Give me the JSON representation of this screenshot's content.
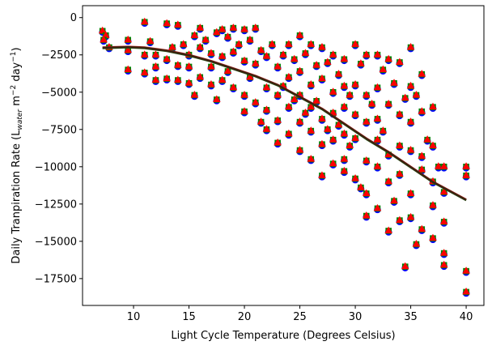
{
  "chart_data": {
    "type": "scatter",
    "xlabel": "Light Cycle Temperature (Degrees Celsius)",
    "ylabel": {
      "prefix": "Daily Tranpiration Rate (L",
      "sub": "water",
      "mid1": " m",
      "sup1": "−2",
      "mid2": " day",
      "sup2": "−1",
      "suffix": ")"
    },
    "xlim": [
      5.4,
      41.6
    ],
    "ylim": [
      -19300,
      800
    ],
    "xticks": [
      10,
      15,
      20,
      25,
      30,
      35,
      40
    ],
    "yticks": [
      0,
      -2500,
      -5000,
      -7500,
      -10000,
      -12500,
      -15000,
      -17500
    ],
    "ytick_labels": [
      "0",
      "−2500",
      "−5000",
      "−7500",
      "−10000",
      "−12500",
      "−15000",
      "−17500"
    ],
    "grid": false,
    "series": [
      {
        "marker": "circle",
        "color": "#0000ff"
      },
      {
        "marker": "square",
        "color": "#008000"
      },
      {
        "marker": "triangle",
        "color": "#ff0000"
      }
    ],
    "points": [
      [
        7.2,
        -900
      ],
      [
        7.5,
        -1200
      ],
      [
        7.8,
        -2000
      ],
      [
        7.3,
        -1500
      ],
      [
        9.5,
        -1500
      ],
      [
        9.5,
        -2200
      ],
      [
        9.5,
        -3500
      ],
      [
        11,
        -300
      ],
      [
        11,
        -2500
      ],
      [
        11,
        -3700
      ],
      [
        11.5,
        -1600
      ],
      [
        12,
        -2500
      ],
      [
        12,
        -4200
      ],
      [
        12,
        -3300
      ],
      [
        13,
        -400
      ],
      [
        13,
        -2800
      ],
      [
        13,
        -4100
      ],
      [
        13.5,
        -2000
      ],
      [
        14,
        -500
      ],
      [
        14,
        -3200
      ],
      [
        14,
        -4200
      ],
      [
        14.5,
        -1800
      ],
      [
        15,
        -2500
      ],
      [
        15,
        -3300
      ],
      [
        15,
        -4400
      ],
      [
        15.5,
        -1200
      ],
      [
        15.5,
        -5200
      ],
      [
        16,
        -700
      ],
      [
        16,
        -2000
      ],
      [
        16,
        -4000
      ],
      [
        16.5,
        -1500
      ],
      [
        17,
        -2400
      ],
      [
        17,
        -3300
      ],
      [
        17,
        -4500
      ],
      [
        17.5,
        -1000
      ],
      [
        17.5,
        -5500
      ],
      [
        18,
        -800
      ],
      [
        18,
        -2600
      ],
      [
        18,
        -4200
      ],
      [
        18.5,
        -1300
      ],
      [
        18.5,
        -3600
      ],
      [
        19,
        -700
      ],
      [
        19,
        -2300
      ],
      [
        19,
        -4700
      ],
      [
        19.5,
        -1800
      ],
      [
        20,
        -800
      ],
      [
        20,
        -2900
      ],
      [
        20,
        -5200
      ],
      [
        20,
        -6300
      ],
      [
        20.5,
        -1500
      ],
      [
        20.5,
        -4000
      ],
      [
        21,
        -700
      ],
      [
        21,
        -3100
      ],
      [
        21,
        -5700
      ],
      [
        21.5,
        -2200
      ],
      [
        21.5,
        -7000
      ],
      [
        22,
        -2600
      ],
      [
        22,
        -4700
      ],
      [
        22,
        -6200
      ],
      [
        22,
        -7500
      ],
      [
        22.5,
        -1800
      ],
      [
        23,
        -3300
      ],
      [
        23,
        -5200
      ],
      [
        23,
        -6900
      ],
      [
        23,
        -8400
      ],
      [
        23.5,
        -2500
      ],
      [
        23.5,
        -4600
      ],
      [
        24,
        -1800
      ],
      [
        24,
        -4000
      ],
      [
        24,
        -6000
      ],
      [
        24,
        -7800
      ],
      [
        24.5,
        -2800
      ],
      [
        24.5,
        -5500
      ],
      [
        25,
        -1200
      ],
      [
        25,
        -3600
      ],
      [
        25,
        -5200
      ],
      [
        25,
        -7000
      ],
      [
        25,
        -8900
      ],
      [
        25.5,
        -2400
      ],
      [
        25.5,
        -6400
      ],
      [
        26,
        -1800
      ],
      [
        26,
        -4500
      ],
      [
        26,
        -6000
      ],
      [
        26,
        -7600
      ],
      [
        26,
        -9500
      ],
      [
        26.5,
        -3200
      ],
      [
        26.5,
        -5600
      ],
      [
        27,
        -2000
      ],
      [
        27,
        -4100
      ],
      [
        27,
        -6800
      ],
      [
        27,
        -8500
      ],
      [
        27,
        -10600
      ],
      [
        27.5,
        -3000
      ],
      [
        27.5,
        -7500
      ],
      [
        28,
        -2500
      ],
      [
        28,
        -5000
      ],
      [
        28,
        -6400
      ],
      [
        28,
        -8200
      ],
      [
        28,
        -9800
      ],
      [
        28.5,
        -3800
      ],
      [
        28.5,
        -7200
      ],
      [
        29,
        -2800
      ],
      [
        29,
        -4600
      ],
      [
        29,
        -6000
      ],
      [
        29,
        -7800
      ],
      [
        29,
        -9500
      ],
      [
        29,
        -10300
      ],
      [
        29.5,
        -5200
      ],
      [
        29.5,
        -8600
      ],
      [
        30,
        -1800
      ],
      [
        30,
        -4500
      ],
      [
        30,
        -6500
      ],
      [
        30,
        -8100
      ],
      [
        30,
        -10800
      ],
      [
        30.5,
        -3100
      ],
      [
        30.5,
        -11400
      ],
      [
        31,
        -2500
      ],
      [
        31,
        -5200
      ],
      [
        31,
        -7000
      ],
      [
        31,
        -9600
      ],
      [
        31,
        -11800
      ],
      [
        31,
        -13300
      ],
      [
        31.5,
        -5800
      ],
      [
        32,
        -2500
      ],
      [
        32,
        -4700
      ],
      [
        32,
        -6800
      ],
      [
        32,
        -8200
      ],
      [
        32,
        -10000
      ],
      [
        32,
        -12800
      ],
      [
        32.5,
        -3500
      ],
      [
        32.5,
        -7600
      ],
      [
        33,
        -2800
      ],
      [
        33,
        -5800
      ],
      [
        33,
        -9200
      ],
      [
        33,
        -11000
      ],
      [
        33,
        -14300
      ],
      [
        33.5,
        -4400
      ],
      [
        33.5,
        -12300
      ],
      [
        34,
        -3000
      ],
      [
        34,
        -6500
      ],
      [
        34,
        -8600
      ],
      [
        34,
        -10500
      ],
      [
        34,
        -13600
      ],
      [
        34.5,
        -5400
      ],
      [
        34.5,
        -16700
      ],
      [
        35,
        -2000
      ],
      [
        35,
        -4600
      ],
      [
        35,
        -7000
      ],
      [
        35,
        -8900
      ],
      [
        35,
        -11800
      ],
      [
        35,
        -13400
      ],
      [
        35.5,
        -5200
      ],
      [
        35.5,
        -15200
      ],
      [
        36,
        -3800
      ],
      [
        36,
        -6300
      ],
      [
        36,
        -9300
      ],
      [
        36,
        -10200
      ],
      [
        36,
        -14200
      ],
      [
        36.5,
        -8200
      ],
      [
        37,
        -6000
      ],
      [
        37,
        -8600
      ],
      [
        37,
        -11000
      ],
      [
        37,
        -12600
      ],
      [
        37,
        -14800
      ],
      [
        37.5,
        -10000
      ],
      [
        38,
        -10000
      ],
      [
        38,
        -11700
      ],
      [
        38,
        -13700
      ],
      [
        38,
        -15800
      ],
      [
        38,
        -16600
      ],
      [
        40,
        -10000
      ],
      [
        40,
        -10600
      ],
      [
        40,
        -17000
      ],
      [
        40,
        -18400
      ]
    ],
    "fit_lines": [
      {
        "color": "#b81e1e",
        "x": [
          7.2,
          9.5,
          11,
          13,
          15,
          17,
          19,
          21,
          23,
          25,
          27,
          29,
          31,
          33,
          35,
          37,
          40
        ],
        "y": [
          -2000,
          -1950,
          -2000,
          -2200,
          -2500,
          -2900,
          -3400,
          -3900,
          -4500,
          -5300,
          -6100,
          -7100,
          -8100,
          -9000,
          -10000,
          -11000,
          -12200
        ]
      },
      {
        "color": "#1f6b1f",
        "x": [
          7.2,
          9.5,
          11,
          13,
          15,
          17,
          19,
          21,
          23,
          25,
          27,
          29,
          31,
          33,
          35,
          37,
          40
        ],
        "y": [
          -2050,
          -2000,
          -2050,
          -2250,
          -2550,
          -2950,
          -3450,
          -3950,
          -4550,
          -5350,
          -6150,
          -7150,
          -8150,
          -9050,
          -10050,
          -11050,
          -12250
        ]
      },
      {
        "color": "#3a2410",
        "x": [
          7.2,
          9.5,
          11,
          13,
          15,
          17,
          19,
          21,
          23,
          25,
          27,
          29,
          31,
          33,
          35,
          37,
          40
        ],
        "y": [
          -2020,
          -1975,
          -2025,
          -2225,
          -2525,
          -2925,
          -3425,
          -3925,
          -4525,
          -5325,
          -6125,
          -7125,
          -8125,
          -9025,
          -10025,
          -11025,
          -12225
        ]
      }
    ]
  }
}
